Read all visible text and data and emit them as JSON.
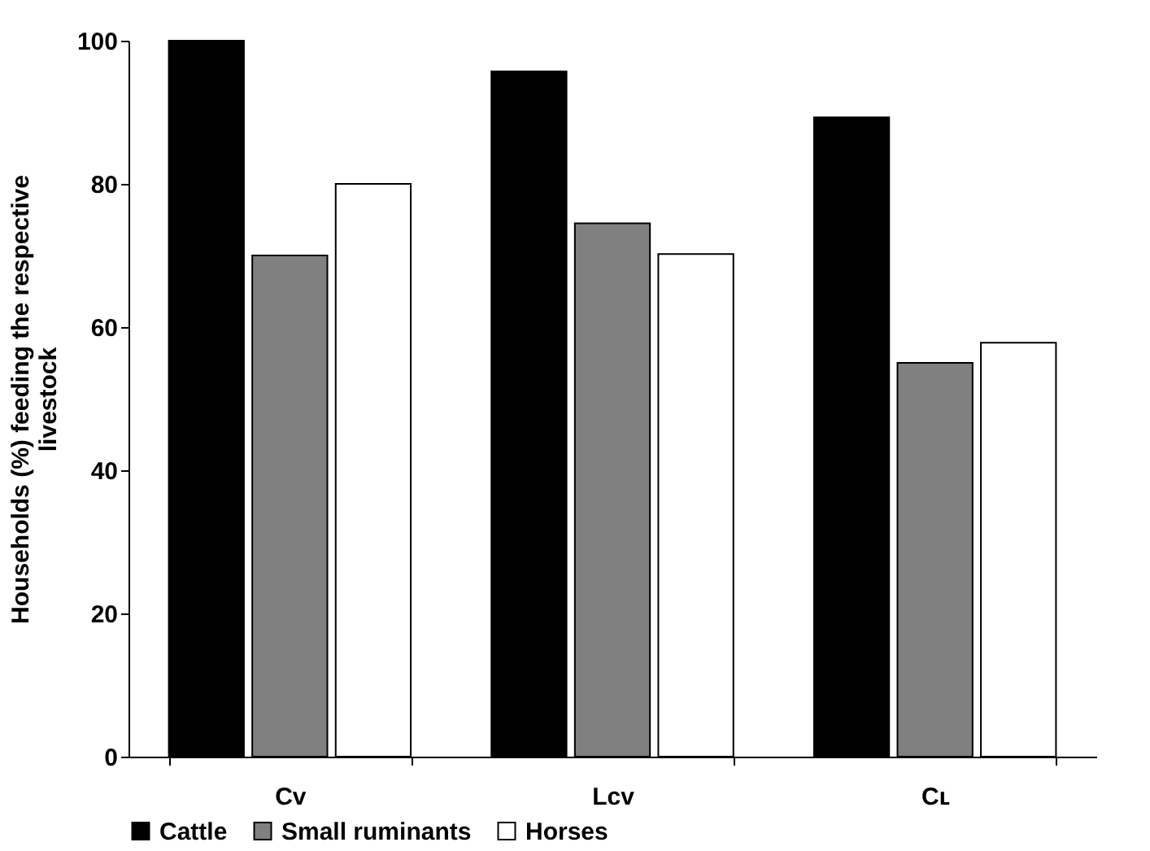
{
  "chart_data": {
    "type": "bar",
    "ylabel": "Households (%) feeding the respective livestock",
    "categories": [
      "Cᴠ",
      "Lᴄᴠ",
      "Cʟ"
    ],
    "series": [
      {
        "name": "Cattle",
        "color": "#000000",
        "values": [
          100,
          95.7,
          89.3
        ]
      },
      {
        "name": "Small ruminants",
        "color": "#808080",
        "values": [
          70,
          74.5,
          55
        ]
      },
      {
        "name": "Horses",
        "color": "#ffffff",
        "values": [
          80,
          70.2,
          57.8
        ]
      }
    ],
    "ylim": [
      0,
      100
    ],
    "yticks": [
      0,
      20,
      40,
      60,
      80,
      100
    ],
    "grid": false,
    "legend": "bottom"
  }
}
